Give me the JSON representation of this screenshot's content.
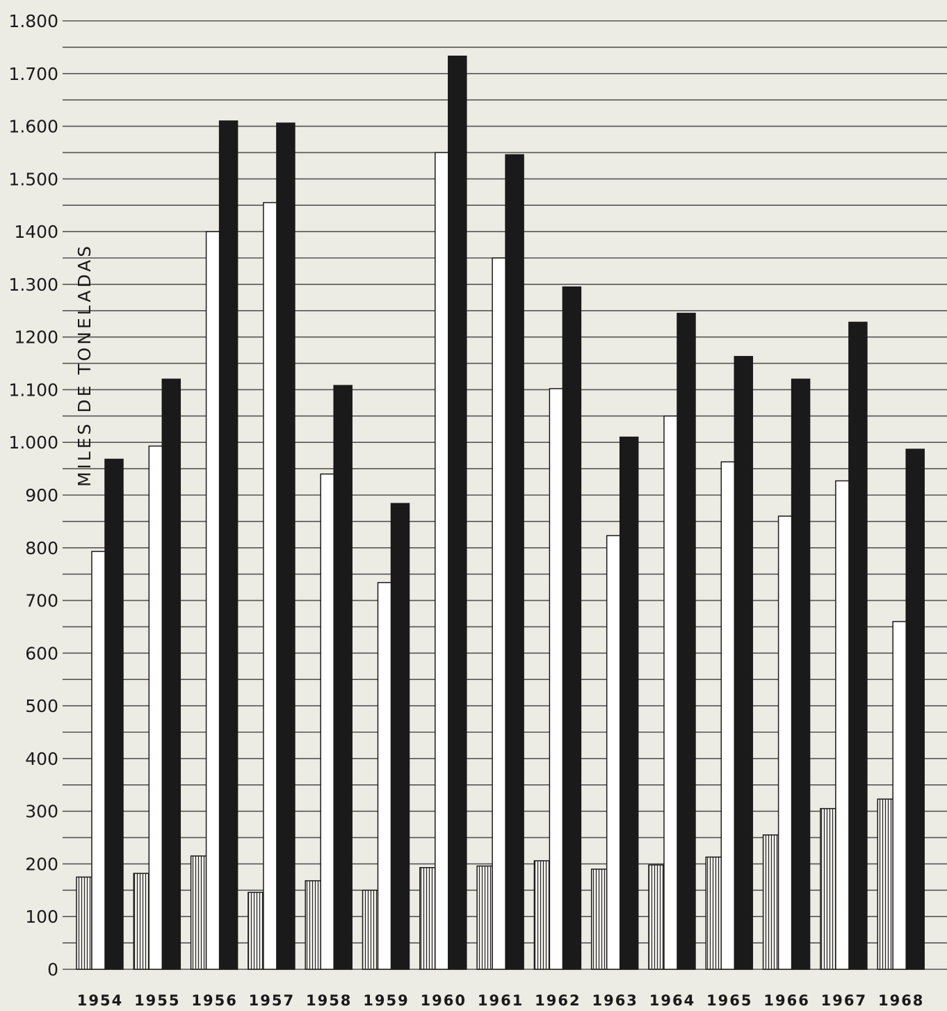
{
  "chart_data": {
    "type": "bar",
    "title": "",
    "xlabel": "",
    "ylabel": "MILES DE TONELADAS",
    "ylim": [
      0,
      1800
    ],
    "yticks": [
      0,
      100,
      200,
      300,
      400,
      500,
      600,
      700,
      800,
      900,
      1000,
      1100,
      1200,
      1300,
      1400,
      1500,
      1600,
      1700,
      1800
    ],
    "ytick_labels": [
      "0",
      "100",
      "200",
      "300",
      "400",
      "500",
      "600",
      "700",
      "800",
      "900",
      "1.000",
      "1.100",
      "1200",
      "1.300",
      "1400",
      "1.500",
      "1.600",
      "1.700",
      "1.800"
    ],
    "grid": true,
    "categories": [
      "1954",
      "1955",
      "1956",
      "1957",
      "1958",
      "1959",
      "1960",
      "1961",
      "1962",
      "1963",
      "1964",
      "1965",
      "1966",
      "1967",
      "1968"
    ],
    "series": [
      {
        "style": "hatched",
        "color": "#ffffff",
        "values": [
          175,
          182,
          215,
          146,
          168,
          150,
          193,
          196,
          206,
          190,
          198,
          213,
          255,
          305,
          323
        ]
      },
      {
        "style": "white",
        "color": "#ffffff",
        "values": [
          793,
          993,
          1400,
          1455,
          940,
          734,
          1550,
          1350,
          1102,
          823,
          1050,
          963,
          860,
          927,
          660
        ]
      },
      {
        "style": "black",
        "color": "#1a1a1a",
        "values": [
          968,
          1120,
          1610,
          1606,
          1108,
          884,
          1733,
          1546,
          1295,
          1010,
          1245,
          1163,
          1120,
          1228,
          987
        ]
      }
    ]
  }
}
